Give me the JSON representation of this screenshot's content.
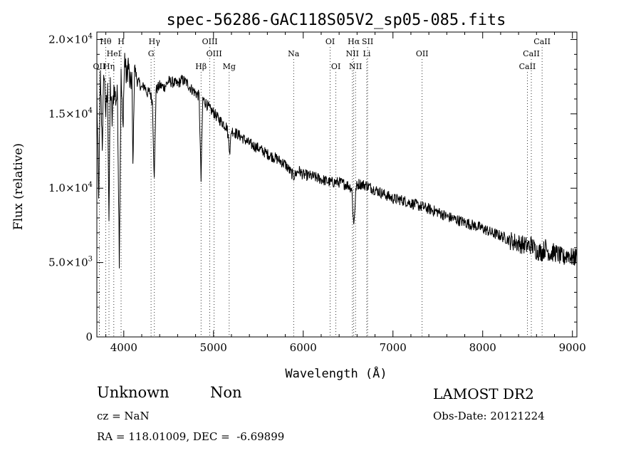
{
  "chart_data": {
    "type": "line",
    "title": "spec-56286-GAC118S05V2_sp05-085.fits",
    "xlabel": "Wavelength (Å)",
    "ylabel": "Flux (relative)",
    "xlim": [
      3700,
      9050
    ],
    "ylim": [
      0,
      20500
    ],
    "xticks": [
      4000,
      5000,
      6000,
      7000,
      8000,
      9000
    ],
    "yticks": [
      {
        "value": 0,
        "label": "0"
      },
      {
        "value": 5000,
        "label": "5.0×10",
        "exp": "3"
      },
      {
        "value": 10000,
        "label": "1.0×10",
        "exp": "4"
      },
      {
        "value": 15000,
        "label": "1.5×10",
        "exp": "4"
      },
      {
        "value": 20000,
        "label": "2.0×10",
        "exp": "4"
      }
    ],
    "series": [
      {
        "x": [
          3700,
          3720,
          3740,
          3760,
          3780,
          3800,
          3820,
          3835,
          3850,
          3870,
          3890,
          3910,
          3930,
          3950,
          3970,
          3990,
          4010,
          4030,
          4050,
          4070,
          4090,
          4102,
          4120,
          4150,
          4180,
          4200,
          4230,
          4260,
          4290,
          4320,
          4340,
          4360,
          4400,
          4450,
          4500,
          4550,
          4600,
          4650,
          4700,
          4750,
          4800,
          4840,
          4861,
          4880,
          4920,
          4960,
          5000,
          5050,
          5100,
          5150,
          5183,
          5200,
          5250,
          5300,
          5400,
          5500,
          5600,
          5700,
          5800,
          5893,
          5950,
          6000,
          6100,
          6200,
          6300,
          6400,
          6500,
          6540,
          6563,
          6590,
          6620,
          6700,
          6800,
          6900,
          7000,
          7100,
          7200,
          7300,
          7400,
          7500,
          7600,
          7700,
          7800,
          7900,
          8000,
          8100,
          8200,
          8300,
          8400,
          8500,
          8540,
          8600,
          8662,
          8700,
          8750,
          8800,
          8850,
          8900,
          8950,
          9000,
          9050
        ],
        "y": [
          16500,
          9000,
          17500,
          13000,
          18000,
          15000,
          16500,
          8000,
          17000,
          14500,
          16800,
          16000,
          16200,
          5500,
          17500,
          14000,
          18800,
          17300,
          18500,
          16800,
          17500,
          11500,
          18200,
          17200,
          17000,
          16700,
          16900,
          16400,
          16500,
          15800,
          10500,
          16600,
          16900,
          16800,
          17200,
          17100,
          17000,
          17300,
          17100,
          16700,
          16400,
          16200,
          10500,
          16000,
          15700,
          15300,
          15100,
          14700,
          14400,
          14100,
          12500,
          13900,
          13700,
          13500,
          13000,
          12700,
          12300,
          12000,
          11600,
          10800,
          11200,
          10900,
          10800,
          10600,
          10400,
          10400,
          10200,
          10000,
          7500,
          10100,
          10300,
          10200,
          9900,
          9600,
          9300,
          9200,
          9000,
          8800,
          8600,
          8400,
          8100,
          7900,
          7700,
          7500,
          7300,
          7000,
          6800,
          6500,
          6300,
          6100,
          6200,
          5800,
          5700,
          6000,
          5600,
          5700,
          5500,
          5300,
          5600,
          5300,
          5400
        ]
      }
    ],
    "lines_emission": [
      {
        "label": "Hθ",
        "x": 3798,
        "row": 1
      },
      {
        "label": "H",
        "x": 3970,
        "row": 1
      },
      {
        "label": "Hγ",
        "x": 4341,
        "row": 1
      },
      {
        "label": "OIII",
        "x": 4959,
        "row": 1
      },
      {
        "label": "OI",
        "x": 6300,
        "row": 1
      },
      {
        "label": "Hα",
        "x": 6563,
        "row": 1
      },
      {
        "label": "SII",
        "x": 6717,
        "row": 1
      },
      {
        "label": "CaII",
        "x": 8662,
        "row": 1
      },
      {
        "label": "HeI",
        "x": 3889,
        "row": 2
      },
      {
        "label": "G",
        "x": 4304,
        "row": 2
      },
      {
        "label": "OIII",
        "x": 5007,
        "row": 2
      },
      {
        "label": "Na",
        "x": 5893,
        "row": 2
      },
      {
        "label": "NII",
        "x": 6548,
        "row": 2
      },
      {
        "label": "Li",
        "x": 6708,
        "row": 2
      },
      {
        "label": "OII",
        "x": 7325,
        "row": 2
      },
      {
        "label": "CaII",
        "x": 8542,
        "row": 2
      },
      {
        "label": "OII",
        "x": 3727,
        "row": 3
      },
      {
        "label": "Hη",
        "x": 3835,
        "row": 3
      },
      {
        "label": "Hβ",
        "x": 4861,
        "row": 3
      },
      {
        "label": "Mg",
        "x": 5175,
        "row": 3
      },
      {
        "label": "OI",
        "x": 6364,
        "row": 3
      },
      {
        "label": "NII",
        "x": 6583,
        "row": 3
      },
      {
        "label": "CaII",
        "x": 8498,
        "row": 3
      }
    ]
  },
  "info": {
    "class_label": "Unknown",
    "subclass_label": "Non",
    "cz": "cz = NaN",
    "coords": "RA = 118.01009, DEC =  -6.69899",
    "survey": "LAMOST DR2",
    "obs_date": "Obs-Date: 20121224"
  }
}
